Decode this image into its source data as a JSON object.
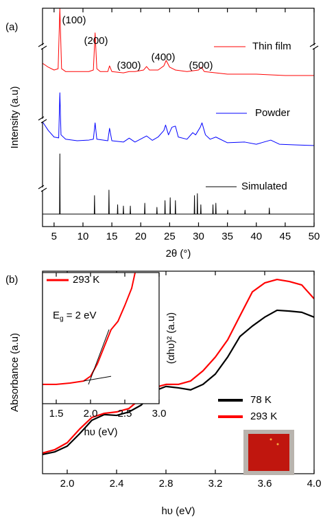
{
  "chart_data": [
    {
      "type": "line",
      "panel_label": "(a)",
      "x_label": "2θ (°)",
      "y_label": "Intensity (a.u)",
      "xlim": [
        3,
        50
      ],
      "xticks": [
        5,
        10,
        15,
        20,
        25,
        30,
        35,
        40,
        45,
        50
      ],
      "ylim": [
        0,
        100
      ],
      "annotations": [
        "(100)",
        "(200)",
        "(300)",
        "(400)",
        "(500)"
      ],
      "series": [
        {
          "name": "Thin film",
          "color": "#ff0000",
          "x": [
            3,
            4,
            5,
            5.7,
            6,
            6.3,
            7,
            9,
            11,
            11.8,
            12.1,
            12.4,
            13,
            14.3,
            14.6,
            15,
            17,
            18,
            19,
            20.5,
            21,
            21.5,
            23,
            24,
            24.4,
            25,
            26,
            28,
            30,
            30.5,
            31,
            33,
            35,
            40,
            45,
            50
          ],
          "values": [
            74.8,
            73,
            71.7,
            72.3,
            100,
            72.3,
            71,
            71,
            71,
            71.7,
            88.7,
            72.3,
            71,
            71,
            73.6,
            71,
            70.4,
            71,
            71,
            71.7,
            73.3,
            71.7,
            71.7,
            73.6,
            76.1,
            73,
            71.7,
            71,
            71.7,
            73,
            71,
            70.4,
            69.8,
            69.8,
            69.2,
            69.2
          ]
        },
        {
          "name": "Powder",
          "color": "#0000ff",
          "x": [
            3,
            4,
            5,
            5.8,
            6,
            6.2,
            7,
            9,
            11,
            11.8,
            12.1,
            12.4,
            14.3,
            14.6,
            15,
            17,
            18,
            19,
            21,
            22,
            23,
            24,
            24.3,
            24.8,
            25.4,
            26,
            26.5,
            28,
            29,
            29.5,
            30.3,
            30.6,
            31.2,
            32,
            33,
            35,
            38,
            40,
            42.5,
            44,
            47,
            50
          ],
          "values": [
            48,
            44,
            41,
            40.6,
            61.3,
            42,
            40,
            39.3,
            39.6,
            40,
            47.5,
            40,
            39.3,
            45,
            39.3,
            38.7,
            40.5,
            38.7,
            41.5,
            39.5,
            41,
            44,
            46.5,
            42,
            45.5,
            46,
            41,
            40,
            43,
            42,
            45.5,
            47.5,
            42,
            40,
            41,
            38.4,
            38.7,
            37.7,
            39.6,
            37.7,
            37.4,
            37.1
          ]
        },
        {
          "name": "Simulated",
          "color": "#000000",
          "x": [
            3,
            5.95,
            6,
            6.05,
            11.95,
            12,
            12.05,
            14.45,
            14.5,
            14.55,
            15.95,
            16,
            16.05,
            16.95,
            17,
            17.05,
            18.15,
            18.2,
            18.25,
            20.65,
            20.7,
            20.75,
            22.75,
            22.8,
            22.85,
            24.15,
            24.2,
            24.25,
            25.05,
            25.1,
            25.15,
            25.95,
            26,
            26.05,
            29.25,
            29.3,
            29.35,
            29.75,
            29.8,
            29.85,
            30.35,
            30.4,
            30.45,
            32.45,
            32.5,
            32.55,
            32.95,
            33,
            33.05,
            35,
            35.05,
            35.1,
            38,
            38.05,
            38.1,
            42.2,
            42.25,
            42.3,
            50
          ],
          "values": [
            5.7,
            5.7,
            33.3,
            5.7,
            5.7,
            14.2,
            5.7,
            5.7,
            16.7,
            5.7,
            5.7,
            10,
            5.7,
            5.7,
            9.4,
            5.7,
            5.7,
            9.4,
            5.7,
            5.7,
            10.7,
            5.7,
            5.7,
            8.8,
            5.7,
            5.7,
            11.9,
            5.7,
            5.7,
            13.2,
            5.7,
            5.7,
            11.9,
            5.7,
            5.7,
            14.2,
            5.7,
            5.7,
            15.1,
            5.7,
            5.7,
            10,
            5.7,
            5.7,
            10,
            5.7,
            5.7,
            10.7,
            5.7,
            5.7,
            7.5,
            5.7,
            5.7,
            7.5,
            5.7,
            5.7,
            8.5,
            5.7,
            5.7
          ]
        }
      ]
    },
    {
      "type": "line",
      "panel_label": "(b)",
      "x_label": "hυ (eV)",
      "y_label": "Absorbance (a.u)",
      "xlim": [
        1.8,
        4.0
      ],
      "xticks": [
        {
          "value": 2,
          "label": "2.0"
        },
        2.4,
        2.8,
        3.2,
        3.6,
        {
          "value": 4,
          "label": "4.0"
        }
      ],
      "ylim": [
        0,
        100
      ],
      "legend_position": "lower right",
      "x": [
        1.8,
        1.9,
        2.0,
        2.1,
        2.2,
        2.3,
        2.4,
        2.5,
        2.6,
        2.7,
        2.8,
        2.9,
        3.0,
        3.1,
        3.2,
        3.3,
        3.4,
        3.5,
        3.6,
        3.7,
        3.8,
        3.9,
        4.0
      ],
      "series": [
        {
          "name": "78 K",
          "color": "#000000",
          "values": [
            9.5,
            10.8,
            13.6,
            19.7,
            26.4,
            29.2,
            28.8,
            30.5,
            33.9,
            40.7,
            43.1,
            42.4,
            41.4,
            44.1,
            49.2,
            57.6,
            67.8,
            72.9,
            77.3,
            80.7,
            80.3,
            79.7,
            77.3
          ]
        },
        {
          "name": "293 K",
          "color": "#ff0000",
          "values": [
            10.2,
            11.9,
            15.3,
            22,
            27.8,
            29.8,
            30.5,
            32.2,
            37.3,
            42.4,
            44.1,
            44.1,
            45.8,
            50.8,
            57.6,
            66.1,
            78,
            89.8,
            94.2,
            95.9,
            94.9,
            93.2,
            86.4
          ]
        }
      ]
    },
    {
      "type": "line",
      "x_label": "hυ (eV)",
      "y_label": "(αhυ)² (a.u)",
      "xlim": [
        1.3,
        3.0
      ],
      "xticks": [
        1.5,
        {
          "value": 2,
          "label": "2.0"
        },
        2.5,
        {
          "value": 3,
          "label": "3.0"
        }
      ],
      "ylim": [
        0,
        100
      ],
      "legend_position": "upper left",
      "annotation": {
        "text": "E",
        "subscript": "g",
        "rest": " = 2 eV"
      },
      "series": [
        {
          "name": "293 K",
          "color": "#ff0000",
          "x": [
            1.3,
            1.5,
            1.7,
            1.9,
            2.0,
            2.1,
            2.2,
            2.3,
            2.4,
            2.5,
            2.6,
            2.65
          ],
          "values": [
            14.7,
            14.7,
            15.7,
            17.3,
            20.9,
            30.4,
            43.5,
            56.5,
            62.8,
            74.9,
            88,
            100
          ]
        }
      ],
      "fit_lines": [
        {
          "color": "#000000",
          "x": [
            1.97,
            2.27
          ],
          "values": [
            14.7,
            56.5
          ]
        },
        {
          "color": "#000000",
          "x": [
            1.9,
            2.3
          ],
          "values": [
            17.3,
            20.9
          ]
        }
      ]
    }
  ]
}
